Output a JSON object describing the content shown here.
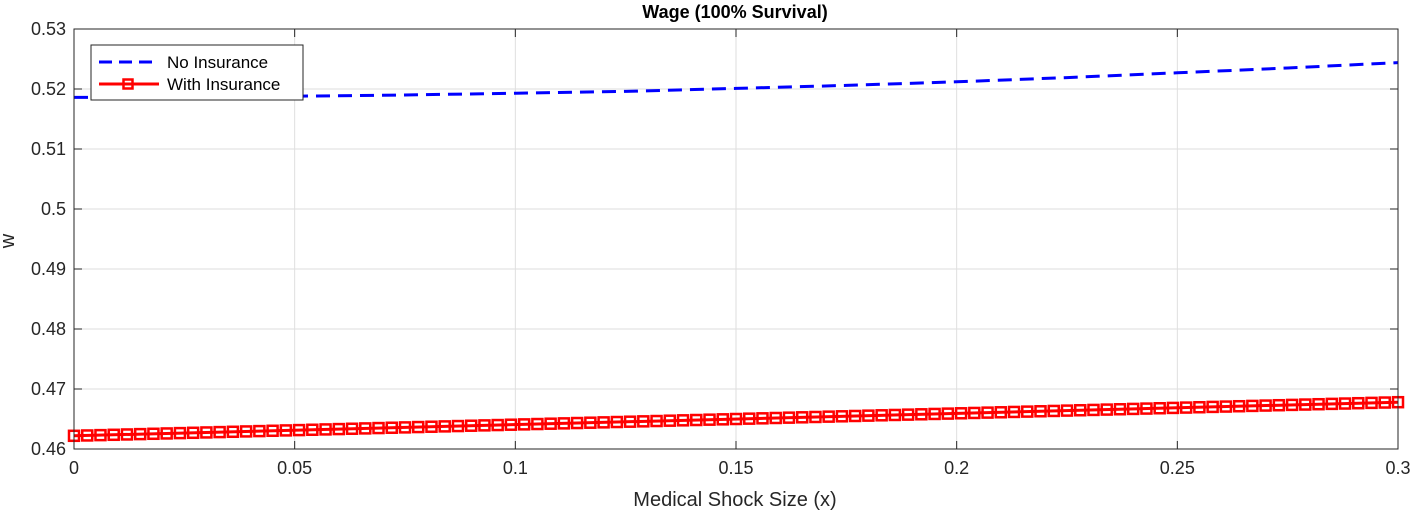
{
  "chart_data": {
    "type": "line",
    "title": "Wage (100% Survival)",
    "xlabel": "Medical Shock Size (x)",
    "ylabel": "w",
    "xlim": [
      0,
      0.3
    ],
    "ylim": [
      0.46,
      0.53
    ],
    "xticks": [
      0,
      0.05,
      0.1,
      0.15,
      0.2,
      0.25,
      0.3
    ],
    "xtick_labels": [
      "0",
      "0.05",
      "0.1",
      "0.15",
      "0.2",
      "0.25",
      "0.3"
    ],
    "yticks": [
      0.46,
      0.47,
      0.48,
      0.49,
      0.5,
      0.51,
      0.52,
      0.53
    ],
    "ytick_labels": [
      "0.46",
      "0.47",
      "0.48",
      "0.49",
      "0.5",
      "0.51",
      "0.52",
      "0.53"
    ],
    "grid": true,
    "legend_position": "top-left",
    "series": [
      {
        "name": "No Insurance",
        "color": "#0000ff",
        "style": "dashed",
        "x": [
          0,
          0.025,
          0.05,
          0.075,
          0.1,
          0.125,
          0.15,
          0.175,
          0.2,
          0.225,
          0.25,
          0.275,
          0.3
        ],
        "y": [
          0.5186,
          0.5187,
          0.5188,
          0.519,
          0.5193,
          0.5196,
          0.5201,
          0.5206,
          0.5212,
          0.5219,
          0.5227,
          0.5235,
          0.5244
        ]
      },
      {
        "name": "With Insurance",
        "color": "#ff0000",
        "style": "solid",
        "marker": "square",
        "x_start": 0,
        "x_end": 0.3,
        "y_start": 0.4622,
        "y_end": 0.4678
      }
    ]
  }
}
